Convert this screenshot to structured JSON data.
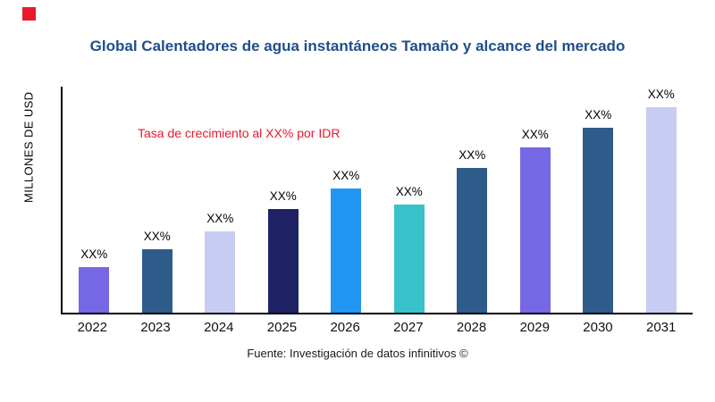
{
  "page": {
    "title": "Global Calentadores de agua instantáneos Tamaño y alcance del mercado",
    "source": "Fuente: Investigación de datos infinitivos ©"
  },
  "colors": {
    "title": "#1f4e8c",
    "annotation": "#e8192c",
    "logo": "#e8192c",
    "axis": "#000000"
  },
  "chart_data": {
    "type": "bar",
    "title": "Global Calentadores de agua instantáneos Tamaño y alcance del mercado",
    "ylabel": "MILLONES DE USD",
    "xlabel": "",
    "annotation": "Tasa de crecimiento al XX% por IDR",
    "categories": [
      "2022",
      "2023",
      "2024",
      "2025",
      "2026",
      "2027",
      "2028",
      "2029",
      "2030",
      "2031"
    ],
    "values": [
      20,
      28,
      36,
      46,
      55,
      48,
      64,
      73,
      82,
      91
    ],
    "bar_labels": [
      "XX%",
      "XX%",
      "XX%",
      "XX%",
      "XX%",
      "XX%",
      "XX%",
      "XX%",
      "XX%",
      "XX%"
    ],
    "bar_colors": [
      "#7667e4",
      "#2e5c8a",
      "#c7ccf2",
      "#1f2366",
      "#2196f3",
      "#38c2cb",
      "#2e5c8a",
      "#7667e4",
      "#2e5c8a",
      "#c7ccf2"
    ],
    "ylim": [
      0,
      100
    ],
    "grid": false,
    "legend": "none",
    "value_note": "values are relative bar heights estimated 0-100; printed labels are XX% placeholders"
  }
}
